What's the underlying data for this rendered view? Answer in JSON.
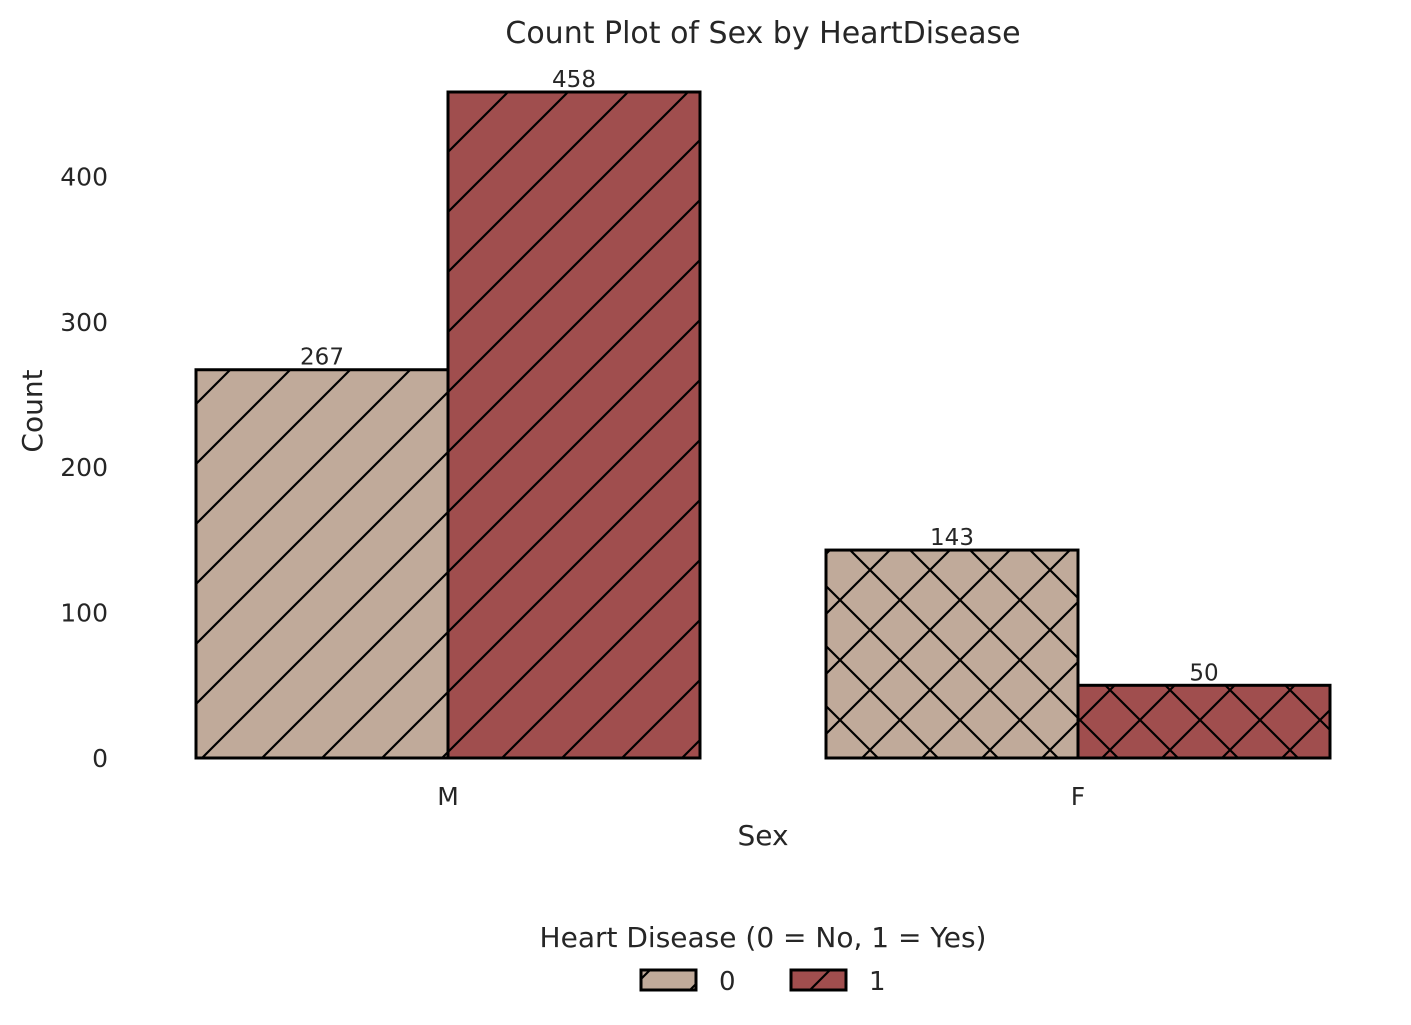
{
  "chart_data": {
    "type": "bar",
    "title": "Count Plot of Sex by HeartDisease",
    "xlabel": "Sex",
    "ylabel": "Count",
    "categories": [
      "M",
      "F"
    ],
    "ylim": [
      0,
      458
    ],
    "yticks": [
      0,
      100,
      200,
      300,
      400
    ],
    "grid": false,
    "series": [
      {
        "name": "0",
        "values": [
          267,
          143
        ],
        "color": "#c0aa9a"
      },
      {
        "name": "1",
        "values": [
          458,
          50
        ],
        "color": "#a04e4e"
      }
    ],
    "hatches": [
      "diagonal",
      "crosshatch"
    ],
    "legend": {
      "title": "Heart Disease (0 = No, 1 = Yes)",
      "placement": "bottom-center",
      "entries": [
        "0",
        "1"
      ]
    }
  }
}
